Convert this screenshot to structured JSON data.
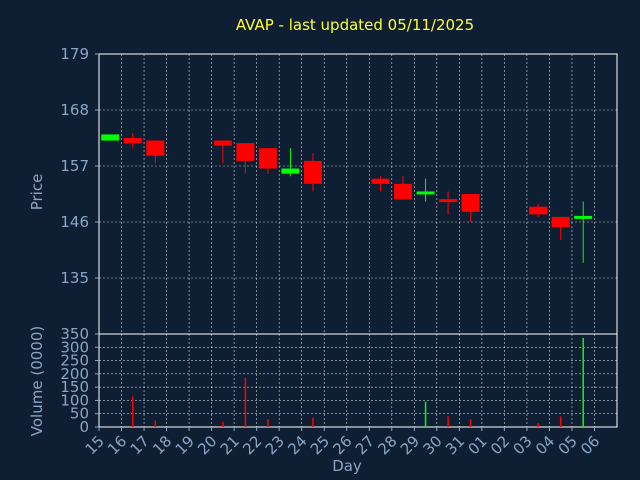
{
  "title": "AVAP - last updated 05/11/2025",
  "colors": {
    "background": "#0f1f33",
    "title": "#ffff33",
    "axis_text": "#8aa6c6",
    "grid": "#ffffff",
    "up": "#00ff00",
    "down": "#ff0000"
  },
  "chart_data": [
    {
      "type": "candlestick",
      "ylabel": "Price",
      "ylim": [
        124,
        179
      ],
      "yticks": [
        135,
        146,
        157,
        168,
        179
      ],
      "grid": true,
      "x": [
        "15",
        "16",
        "17",
        "18",
        "19",
        "20",
        "21",
        "22",
        "23",
        "24",
        "25",
        "26",
        "27",
        "28",
        "29",
        "30",
        "31",
        "01",
        "02",
        "03",
        "04",
        "05",
        "06"
      ],
      "candles": [
        {
          "day": "15",
          "open": 162.0,
          "high": 163.2,
          "low": 162.0,
          "close": 163.2
        },
        {
          "day": "16",
          "open": 162.5,
          "high": 163.5,
          "low": 160.5,
          "close": 161.5
        },
        {
          "day": "17",
          "open": 162.0,
          "high": 162.0,
          "low": 157.5,
          "close": 159.0
        },
        {
          "day": "20",
          "open": 162.0,
          "high": 162.0,
          "low": 157.5,
          "close": 161.0
        },
        {
          "day": "21",
          "open": 161.5,
          "high": 161.5,
          "low": 155.5,
          "close": 158.0
        },
        {
          "day": "22",
          "open": 160.5,
          "high": 160.5,
          "low": 155.5,
          "close": 156.5
        },
        {
          "day": "23",
          "open": 155.5,
          "high": 160.5,
          "low": 155.0,
          "close": 156.5
        },
        {
          "day": "24",
          "open": 158.0,
          "high": 159.5,
          "low": 152.0,
          "close": 153.5
        },
        {
          "day": "27",
          "open": 154.5,
          "high": 155.0,
          "low": 152.0,
          "close": 153.5
        },
        {
          "day": "28",
          "open": 153.5,
          "high": 155.0,
          "low": 150.5,
          "close": 150.5
        },
        {
          "day": "29",
          "open": 151.5,
          "high": 154.5,
          "low": 150.0,
          "close": 152.0
        },
        {
          "day": "30",
          "open": 150.5,
          "high": 152.0,
          "low": 147.5,
          "close": 150.0
        },
        {
          "day": "31",
          "open": 151.5,
          "high": 151.5,
          "low": 146.0,
          "close": 148.0
        },
        {
          "day": "03",
          "open": 149.0,
          "high": 149.5,
          "low": 147.0,
          "close": 147.5
        },
        {
          "day": "04",
          "open": 147.0,
          "high": 147.0,
          "low": 142.5,
          "close": 145.0
        },
        {
          "day": "05",
          "open": 147.0,
          "high": 150.0,
          "low": 138.0,
          "close": 147.2
        }
      ]
    },
    {
      "type": "bar",
      "ylabel": "Volume (0000)",
      "xlabel": "Day",
      "ylim": [
        0,
        350
      ],
      "yticks": [
        0,
        50,
        100,
        150,
        200,
        250,
        300,
        350
      ],
      "categories": [
        "15",
        "16",
        "17",
        "18",
        "19",
        "20",
        "21",
        "22",
        "23",
        "24",
        "25",
        "26",
        "27",
        "28",
        "29",
        "30",
        "31",
        "01",
        "02",
        "03",
        "04",
        "05",
        "06"
      ],
      "values": [
        0,
        115,
        25,
        0,
        0,
        20,
        185,
        30,
        0,
        35,
        0,
        0,
        0,
        0,
        95,
        40,
        30,
        0,
        0,
        15,
        40,
        335,
        0
      ],
      "colors": [
        "",
        "down",
        "down",
        "",
        "",
        "down",
        "down",
        "down",
        "",
        "down",
        "",
        "",
        "",
        "",
        "up",
        "down",
        "down",
        "",
        "",
        "down",
        "down",
        "up",
        ""
      ]
    }
  ]
}
